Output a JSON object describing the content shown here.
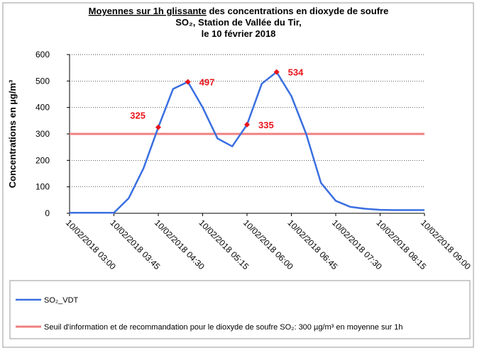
{
  "chart_data": {
    "type": "line",
    "title_underlined": "Moyennes sur 1h glissante",
    "title": "des concentrations en dioxyde de soufre",
    "subtitle": [
      "SO₂, Station de Vallée du Tir,",
      "le 10 février 2018"
    ],
    "y_label": "Concentrations en µg/m³",
    "categories": [
      "10/02/2018 03:00",
      null,
      null,
      "10/02/2018 03:45",
      null,
      null,
      "10/02/2018 04:30",
      null,
      null,
      "10/02/2018 05:15",
      null,
      null,
      "10/02/2018 06:00",
      null,
      null,
      "10/02/2018 06:45",
      null,
      null,
      "10/02/2018 07:30",
      null,
      null,
      "10/02/2018 08:15",
      null,
      null,
      "10/02/2018 09:00"
    ],
    "series": [
      {
        "name": "SO₂_VDT",
        "color": "#3a6fe0",
        "values": [
          2,
          2,
          2,
          2,
          57,
          170,
          325,
          470,
          497,
          400,
          283,
          253,
          335,
          490,
          534,
          443,
          300,
          115,
          47,
          24,
          17,
          13,
          12,
          12,
          12
        ],
        "highlighted": [
          6,
          8,
          12,
          14
        ],
        "highlight_color": "#e8141a"
      }
    ],
    "threshold": {
      "name": "Seuil d'information et de recommandation pour le dioxyde de soufre SO₂: 300 µg/m³ en moyenne sur 1h",
      "value": 300,
      "color": "#f08080"
    },
    "ylim": [
      0,
      600
    ],
    "yticks": [
      0,
      100,
      200,
      300,
      400,
      500,
      600
    ],
    "grid": true
  }
}
